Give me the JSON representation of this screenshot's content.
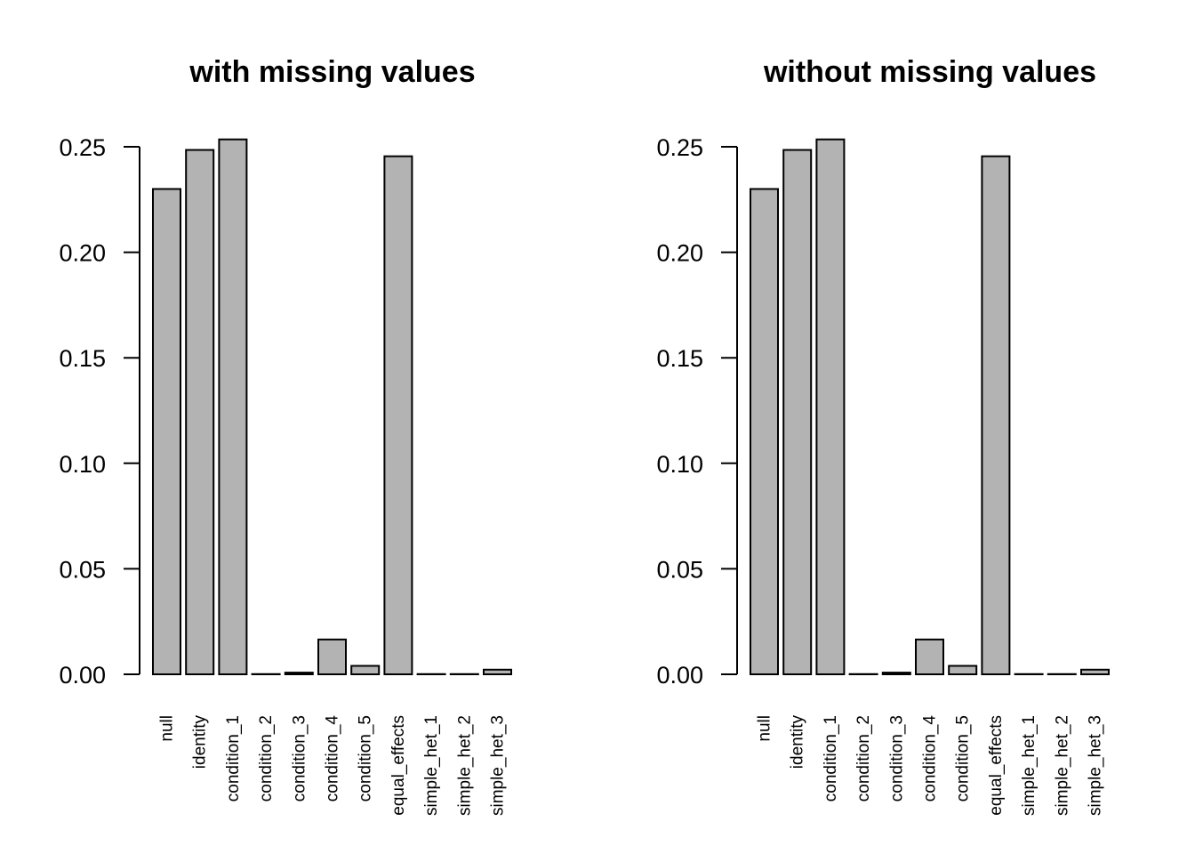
{
  "chart_data": [
    {
      "type": "bar",
      "title": "with missing values",
      "categories": [
        "null",
        "identity",
        "condition_1",
        "condition_2",
        "condition_3",
        "condition_4",
        "condition_5",
        "equal_effects",
        "simple_het_1",
        "simple_het_2",
        "simple_het_3"
      ],
      "values": [
        0.23,
        0.2485,
        0.2535,
        0.0001,
        0.0008,
        0.0165,
        0.004,
        0.2455,
        0.0001,
        0.0001,
        0.0022
      ],
      "yticks": [
        "0.00",
        "0.05",
        "0.10",
        "0.15",
        "0.20",
        "0.25"
      ],
      "ylim": [
        0,
        0.25
      ],
      "xlabel": "",
      "ylabel": "",
      "grid": false,
      "bar_color": "#b3b3b3"
    },
    {
      "type": "bar",
      "title": "without missing values",
      "categories": [
        "null",
        "identity",
        "condition_1",
        "condition_2",
        "condition_3",
        "condition_4",
        "condition_5",
        "equal_effects",
        "simple_het_1",
        "simple_het_2",
        "simple_het_3"
      ],
      "values": [
        0.23,
        0.2485,
        0.2535,
        0.0001,
        0.0008,
        0.0165,
        0.004,
        0.2455,
        0.0001,
        0.0001,
        0.0022
      ],
      "yticks": [
        "0.00",
        "0.05",
        "0.10",
        "0.15",
        "0.20",
        "0.25"
      ],
      "ylim": [
        0,
        0.25
      ],
      "xlabel": "",
      "ylabel": "",
      "grid": false,
      "bar_color": "#b3b3b3"
    }
  ]
}
